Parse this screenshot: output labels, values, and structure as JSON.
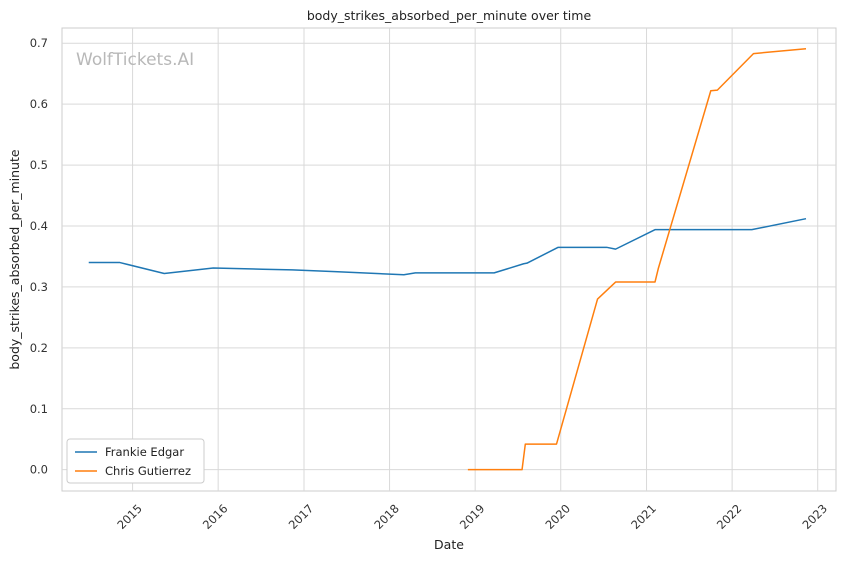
{
  "chart_data": {
    "type": "line",
    "title": "body_strikes_absorbed_per_minute over time",
    "xlabel": "Date",
    "ylabel": "body_strikes_absorbed_per_minute",
    "watermark": "WolfTickets.AI",
    "xlim": [
      "2014-03-06",
      "2023-03-20"
    ],
    "ylim": [
      -0.035,
      0.725
    ],
    "x_ticks": [
      "2015",
      "2016",
      "2017",
      "2018",
      "2019",
      "2020",
      "2021",
      "2022",
      "2023"
    ],
    "y_ticks": [
      "0.0",
      "0.1",
      "0.2",
      "0.3",
      "0.4",
      "0.5",
      "0.6",
      "0.7"
    ],
    "grid": true,
    "legend_position": "lower-left",
    "series": [
      {
        "name": "Frankie Edgar",
        "color": "#1f77b4",
        "points": [
          [
            "2014-06-28",
            0.34
          ],
          [
            "2014-11-08",
            0.34
          ],
          [
            "2015-05-16",
            0.322
          ],
          [
            "2015-12-11",
            0.331
          ],
          [
            "2016-07-09",
            0.329
          ],
          [
            "2016-11-12",
            0.328
          ],
          [
            "2017-05-13",
            0.325
          ],
          [
            "2018-03-03",
            0.32
          ],
          [
            "2018-04-21",
            0.323
          ],
          [
            "2019-03-23",
            0.323
          ],
          [
            "2019-07-27",
            0.338
          ],
          [
            "2019-08-10",
            0.339
          ],
          [
            "2019-12-21",
            0.365
          ],
          [
            "2020-07-15",
            0.365
          ],
          [
            "2020-08-22",
            0.362
          ],
          [
            "2021-02-06",
            0.394
          ],
          [
            "2021-11-06",
            0.394
          ],
          [
            "2022-03-26",
            0.394
          ],
          [
            "2022-11-12",
            0.412
          ]
        ]
      },
      {
        "name": "Chris Gutierrez",
        "color": "#ff7f0e",
        "points": [
          [
            "2018-12-01",
            0.0
          ],
          [
            "2019-07-20",
            0.0
          ],
          [
            "2019-08-03",
            0.042
          ],
          [
            "2019-12-14",
            0.042
          ],
          [
            "2020-06-06",
            0.28
          ],
          [
            "2020-08-22",
            0.308
          ],
          [
            "2021-02-06",
            0.308
          ],
          [
            "2021-02-20",
            0.33
          ],
          [
            "2021-10-02",
            0.622
          ],
          [
            "2021-10-30",
            0.623
          ],
          [
            "2022-04-02",
            0.683
          ],
          [
            "2022-11-12",
            0.691
          ]
        ]
      }
    ]
  }
}
